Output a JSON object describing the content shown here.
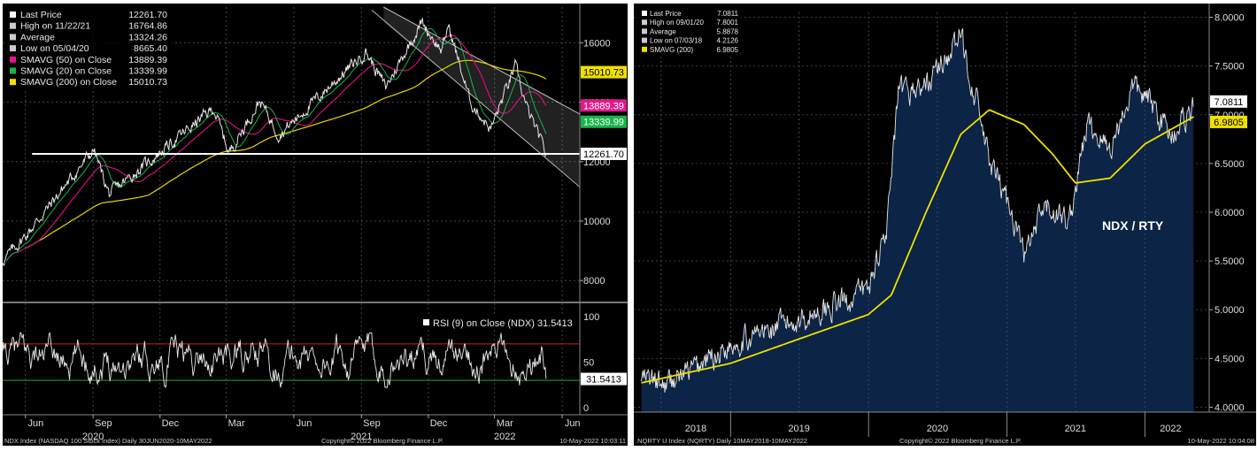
{
  "chart_data": [
    {
      "type": "line",
      "name": "NDX",
      "legend": [
        {
          "label": "Last Price",
          "value": "12261.70",
          "color": "#ffffff"
        },
        {
          "label": "High on 11/22/21",
          "value": "16764.86",
          "color": "#cccccc"
        },
        {
          "label": "Average",
          "value": "13324.26",
          "color": "#cccccc"
        },
        {
          "label": "Low on 05/04/20",
          "value": "8665.40",
          "color": "#cccccc"
        },
        {
          "label": "SMAVG (50)  on Close",
          "value": "13889.39",
          "color": "#e0198a"
        },
        {
          "label": "SMAVG (20)  on Close",
          "value": "13339.99",
          "color": "#18b54a"
        },
        {
          "label": "SMAVG (200)  on Close",
          "value": "15010.73",
          "color": "#f0e000"
        }
      ],
      "y_ticks": [
        "16000",
        "14000",
        "12000",
        "10000",
        "8000"
      ],
      "ylim": [
        7500,
        17200
      ],
      "price_tags": [
        {
          "value": 15010.73,
          "text": "15010.73",
          "bg": "#f0e000",
          "fg": "#000000"
        },
        {
          "value": 13889.39,
          "text": "13889.39",
          "bg": "#e0198a",
          "fg": "#ffffff"
        },
        {
          "value": 13339.99,
          "text": "13339.99",
          "bg": "#18b54a",
          "fg": "#ffffff"
        },
        {
          "value": 12261.7,
          "text": "12261.70",
          "bg": "#ffffff",
          "fg": "#000000"
        }
      ],
      "support_level": 12261.7,
      "key_points": [
        {
          "date": "2020-06-01",
          "price": 9500
        },
        {
          "date": "2020-09-02",
          "price": 12400
        },
        {
          "date": "2020-09-23",
          "price": 10900
        },
        {
          "date": "2021-02-12",
          "price": 13800
        },
        {
          "date": "2021-03-05",
          "price": 12300
        },
        {
          "date": "2021-04-16",
          "price": 14050
        },
        {
          "date": "2021-05-12",
          "price": 12900
        },
        {
          "date": "2021-09-07",
          "price": 15700
        },
        {
          "date": "2021-10-04",
          "price": 14500
        },
        {
          "date": "2021-11-22",
          "price": 16700
        },
        {
          "date": "2021-12-20",
          "price": 15700
        },
        {
          "date": "2021-12-28",
          "price": 16600
        },
        {
          "date": "2022-01-27",
          "price": 14000
        },
        {
          "date": "2022-02-24",
          "price": 13100
        },
        {
          "date": "2022-03-29",
          "price": 15200
        },
        {
          "date": "2022-04-14",
          "price": 13800
        },
        {
          "date": "2022-05-10",
          "price": 12261.7
        }
      ],
      "rsi": {
        "label": "RSI (9)  on Close (NDX) 31.5413",
        "tag": "31.5413",
        "value": 31.5413,
        "y_ticks": [
          "100",
          "50",
          "0"
        ],
        "levels": [
          70,
          30
        ]
      },
      "x_month_labels": [
        "Jun",
        "Sep",
        "Dec",
        "Mar",
        "Jun",
        "Sep",
        "Dec",
        "Mar",
        "Jun"
      ],
      "x_year_labels": [
        "2020",
        "2021",
        "2022"
      ],
      "footer_left": "NDX Index (NASDAQ 100 Stock Index)  Daily 30JUN2020-10MAY2022",
      "footer_center": "Copyright© 2022 Bloomberg Finance L.P.",
      "footer_right": "10-May-2022 10:03:11"
    },
    {
      "type": "area",
      "name": "NQRTY",
      "annotation": "NDX / RTY",
      "legend": [
        {
          "label": "Last Price",
          "value": "7.0811",
          "color": "#ffffff"
        },
        {
          "label": "High on 09/01/20",
          "value": "7.8001",
          "color": "#cccccc"
        },
        {
          "label": "Average",
          "value": "5.8878",
          "color": "#cccccc"
        },
        {
          "label": "Low on 07/03/18",
          "value": "4.2126",
          "color": "#cccccc"
        },
        {
          "label": "SMAVG (200)",
          "value": "6.9805",
          "color": "#f0e000"
        }
      ],
      "y_ticks": [
        "8.0000",
        "7.5000",
        "7.0000",
        "6.5000",
        "6.0000",
        "5.5000",
        "5.0000",
        "4.5000",
        "4.0000"
      ],
      "ylim": [
        3.95,
        8.05
      ],
      "price_tags": [
        {
          "value": 7.0811,
          "text": "7.0811",
          "bg": "#ffffff",
          "fg": "#000000"
        },
        {
          "value": 6.9805,
          "text": "6.9805",
          "bg": "#f0e000",
          "fg": "#000000"
        }
      ],
      "key_points": [
        {
          "date": "2018-05-10",
          "ratio": 4.3
        },
        {
          "date": "2018-07-03",
          "ratio": 4.22
        },
        {
          "date": "2018-10-01",
          "ratio": 4.4
        },
        {
          "date": "2019-01-01",
          "ratio": 4.65
        },
        {
          "date": "2019-07-01",
          "ratio": 4.9
        },
        {
          "date": "2019-12-31",
          "ratio": 5.2
        },
        {
          "date": "2020-02-20",
          "ratio": 5.9
        },
        {
          "date": "2020-03-20",
          "ratio": 7.2
        },
        {
          "date": "2020-06-01",
          "ratio": 7.3
        },
        {
          "date": "2020-09-01",
          "ratio": 7.8
        },
        {
          "date": "2020-10-15",
          "ratio": 7.1
        },
        {
          "date": "2020-11-15",
          "ratio": 6.5
        },
        {
          "date": "2021-01-15",
          "ratio": 6.0
        },
        {
          "date": "2021-02-15",
          "ratio": 5.55
        },
        {
          "date": "2021-04-15",
          "ratio": 6.05
        },
        {
          "date": "2021-06-15",
          "ratio": 5.9
        },
        {
          "date": "2021-08-01",
          "ratio": 6.9
        },
        {
          "date": "2021-10-01",
          "ratio": 6.65
        },
        {
          "date": "2021-12-01",
          "ratio": 7.3
        },
        {
          "date": "2022-01-20",
          "ratio": 7.1
        },
        {
          "date": "2022-03-10",
          "ratio": 6.8
        },
        {
          "date": "2022-05-10",
          "ratio": 7.08
        }
      ],
      "sma_points": [
        {
          "date": "2018-05-10",
          "ratio": 4.25
        },
        {
          "date": "2019-01-01",
          "ratio": 4.45
        },
        {
          "date": "2019-07-01",
          "ratio": 4.7
        },
        {
          "date": "2019-12-31",
          "ratio": 4.95
        },
        {
          "date": "2020-03-01",
          "ratio": 5.15
        },
        {
          "date": "2020-06-01",
          "ratio": 6.0
        },
        {
          "date": "2020-09-01",
          "ratio": 6.8
        },
        {
          "date": "2020-11-15",
          "ratio": 7.05
        },
        {
          "date": "2021-02-15",
          "ratio": 6.9
        },
        {
          "date": "2021-05-01",
          "ratio": 6.6
        },
        {
          "date": "2021-07-01",
          "ratio": 6.3
        },
        {
          "date": "2021-10-01",
          "ratio": 6.35
        },
        {
          "date": "2022-01-01",
          "ratio": 6.7
        },
        {
          "date": "2022-05-10",
          "ratio": 6.98
        }
      ],
      "x_year_labels": [
        "2018",
        "2019",
        "2020",
        "2021",
        "2022"
      ],
      "footer_left": ".NQRTY U Index (NQRTY)  Daily 10MAY2018-10MAY2022",
      "footer_center": "Copyright© 2022 Bloomberg Finance L.P.",
      "footer_right": "10-May-2022 10:04:08"
    }
  ]
}
